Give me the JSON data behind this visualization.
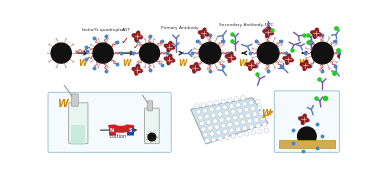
{
  "bead_color": "#111111",
  "spike_color": "#d4a0a0",
  "aptamer_color": "#cc4444",
  "agt_color": "#881111",
  "primary_ab_color": "#5577bb",
  "secondary_ab_color": "#7755aa",
  "fitc_color": "#22cc22",
  "biotin_color": "#4488cc",
  "arrow_color": "#222222",
  "W_color": "#cc8800",
  "background": "#ffffff",
  "box_edge_color": "#aaccdd",
  "box_face_color": "#f5faff",
  "magnet_red": "#cc2222",
  "magnet_blue": "#2244aa",
  "tube_face": "#e8f5f0",
  "tube_liquid": "#c0e8d8",
  "plate_color": "#c8dde8",
  "surface_color": "#d4aa55",
  "labels": {
    "biotin_gquadruplex": "biotin/G-quadruplex",
    "agt": "AGT",
    "primary_antibody": "Primary Antibody",
    "secondary_antibody": "Secondary Antibody-FITC",
    "elution": "Elution",
    "W": "W"
  }
}
